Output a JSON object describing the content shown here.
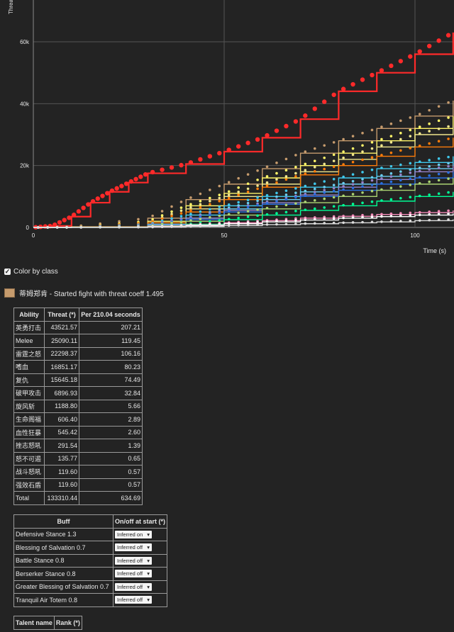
{
  "chart_data": {
    "type": "line",
    "ylabel": "Threat",
    "xlabel": "Time (s)",
    "yticks": [
      "0",
      "20k",
      "40k",
      "60k"
    ],
    "xticks": [
      "0",
      "50",
      "100"
    ],
    "xlim": [
      0,
      110
    ],
    "ylim": [
      0,
      75000
    ],
    "grid": true,
    "series": [
      {
        "color": "#ff2a2a",
        "x": [
          0,
          5,
          10,
          15,
          20,
          25,
          30,
          40,
          50,
          60,
          70,
          80,
          90,
          100,
          110
        ],
        "y": [
          0,
          500,
          3500,
          8000,
          11500,
          14500,
          17500,
          20500,
          24500,
          29000,
          35000,
          44000,
          50000,
          56000,
          63000
        ]
      },
      {
        "color": "#c69b6d",
        "x": [
          0,
          10,
          30,
          40,
          50,
          60,
          70,
          80,
          90,
          100,
          110
        ],
        "y": [
          0,
          200,
          3000,
          9000,
          14000,
          19000,
          24000,
          28000,
          32000,
          36000,
          41000
        ]
      },
      {
        "color": "#fff569",
        "x": [
          0,
          10,
          30,
          40,
          50,
          60,
          70,
          80,
          90,
          100,
          110
        ],
        "y": [
          0,
          100,
          2000,
          7000,
          11000,
          16000,
          20000,
          24000,
          28000,
          32000,
          36000
        ]
      },
      {
        "color": "#f0e68c",
        "x": [
          0,
          10,
          30,
          40,
          50,
          60,
          70,
          80,
          90,
          100,
          110
        ],
        "y": [
          0,
          100,
          1500,
          6000,
          10000,
          14000,
          18000,
          22000,
          26000,
          30000,
          33000
        ]
      },
      {
        "color": "#ff7d0a",
        "x": [
          0,
          10,
          30,
          40,
          50,
          60,
          70,
          80,
          90,
          100,
          110
        ],
        "y": [
          0,
          100,
          1500,
          5000,
          9000,
          13000,
          17000,
          20000,
          23000,
          26000,
          29000
        ]
      },
      {
        "color": "#3fc7eb",
        "x": [
          0,
          10,
          30,
          40,
          50,
          60,
          70,
          80,
          90,
          100,
          110
        ],
        "y": [
          0,
          50,
          1000,
          4000,
          7000,
          10000,
          13000,
          16000,
          19000,
          21000,
          23000
        ]
      },
      {
        "color": "#69ccf0",
        "x": [
          0,
          10,
          30,
          40,
          50,
          60,
          70,
          80,
          90,
          100,
          110
        ],
        "y": [
          0,
          50,
          800,
          3000,
          6000,
          9000,
          11500,
          14000,
          16500,
          19000,
          21000
        ]
      },
      {
        "color": "#9482c9",
        "x": [
          0,
          10,
          30,
          40,
          50,
          60,
          70,
          80,
          90,
          100,
          110
        ],
        "y": [
          0,
          50,
          800,
          3000,
          5500,
          8000,
          10500,
          13000,
          15500,
          18000,
          20000
        ]
      },
      {
        "color": "#2a6fdf",
        "x": [
          0,
          10,
          30,
          40,
          50,
          60,
          70,
          80,
          90,
          100,
          110
        ],
        "y": [
          0,
          50,
          600,
          2500,
          5000,
          7500,
          10000,
          12000,
          14000,
          16000,
          18000
        ]
      },
      {
        "color": "#abd473",
        "x": [
          0,
          10,
          30,
          40,
          50,
          60,
          70,
          80,
          90,
          100,
          110
        ],
        "y": [
          0,
          50,
          500,
          2000,
          4000,
          6000,
          8000,
          10000,
          12000,
          14000,
          16000
        ]
      },
      {
        "color": "#00ff96",
        "x": [
          0,
          10,
          30,
          40,
          50,
          60,
          70,
          80,
          90,
          100,
          110
        ],
        "y": [
          0,
          20,
          300,
          1000,
          2500,
          4000,
          5500,
          7000,
          8500,
          10000,
          11500
        ]
      },
      {
        "color": "#f58cba",
        "x": [
          0,
          10,
          30,
          40,
          50,
          60,
          70,
          80,
          90,
          100,
          110
        ],
        "y": [
          0,
          20,
          300,
          800,
          1500,
          2200,
          3000,
          3600,
          4200,
          4800,
          5500
        ]
      },
      {
        "color": "#ffffff",
        "x": [
          0,
          10,
          30,
          40,
          50,
          60,
          70,
          80,
          90,
          100,
          110
        ],
        "y": [
          0,
          20,
          200,
          600,
          1200,
          1800,
          2400,
          3000,
          3500,
          4000,
          4500
        ]
      },
      {
        "color": "#dcdcdc",
        "x": [
          0,
          10,
          30,
          40,
          50,
          60,
          70,
          80,
          90,
          100,
          110
        ],
        "y": [
          0,
          10,
          100,
          300,
          600,
          900,
          1200,
          1500,
          1800,
          2200,
          2600
        ]
      }
    ]
  },
  "controls": {
    "color_by_class_label": "Color by class",
    "color_by_class_checked": true
  },
  "player": {
    "label": "蒂姆郑肯 - Started fight with threat coeff 1.495",
    "swatch_color": "#c69b6d"
  },
  "ability_table": {
    "headers": [
      "Ability",
      "Threat (*)",
      "Per 210.04 seconds"
    ],
    "rows": [
      [
        "英勇打击",
        "43521.57",
        "207.21"
      ],
      [
        "Melee",
        "25090.11",
        "119.45"
      ],
      [
        "雷霆之怒",
        "22298.37",
        "106.16"
      ],
      [
        "嗜血",
        "16851.17",
        "80.23"
      ],
      [
        "复仇",
        "15645.18",
        "74.49"
      ],
      [
        "破甲攻击",
        "6896.93",
        "32.84"
      ],
      [
        "旋风斩",
        "1188.80",
        "5.66"
      ],
      [
        "生命阁福",
        "606.40",
        "2.89"
      ],
      [
        "血性狂暴",
        "545.42",
        "2.60"
      ],
      [
        "挫志怒吼",
        "291.54",
        "1.39"
      ],
      [
        "怒不可遏",
        "135.77",
        "0.65"
      ],
      [
        "战斗怒吼",
        "119.60",
        "0.57"
      ],
      [
        "强效石盾",
        "119.60",
        "0.57"
      ],
      [
        "Total",
        "133310.44",
        "634.69"
      ]
    ]
  },
  "buff_table": {
    "headers": [
      "Buff",
      "On/off at start (*)"
    ],
    "rows": [
      [
        "Defensive Stance 1.3",
        "Inferred on"
      ],
      [
        "Blessing of Salvation 0.7",
        "Inferred off"
      ],
      [
        "Battle Stance 0.8",
        "Inferred off"
      ],
      [
        "Berserker Stance 0.8",
        "Inferred off"
      ],
      [
        "Greater Blessing of Salvation 0.7",
        "Inferred off"
      ],
      [
        "Tranquil Air Totem 0.8",
        "Inferred off"
      ]
    ]
  },
  "talent_table": {
    "headers": [
      "Talent name",
      "Rank (*)"
    ]
  }
}
